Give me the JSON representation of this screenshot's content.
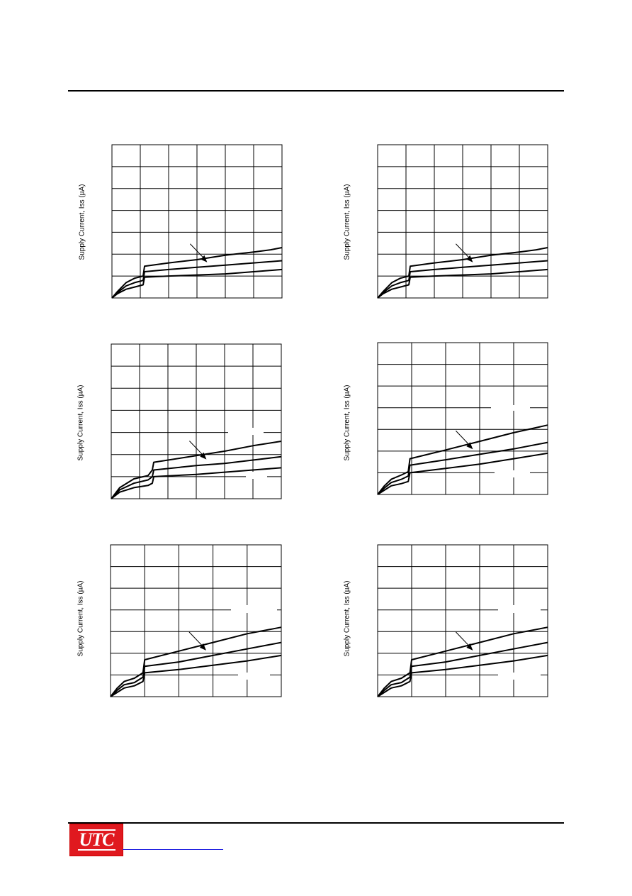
{
  "header": {},
  "ylabel": "Supply Current, Iss (µA)",
  "footer": {
    "logo_text": "UTC",
    "link_text": ""
  },
  "colors": {
    "logo_bg": "#e0191f",
    "link": "#1a1ae0",
    "ink": "#000000"
  },
  "chart_data": [
    {
      "type": "line",
      "title": "",
      "xlabel": "",
      "ylabel": "Supply Current, Iss (µA)",
      "xlim": [
        0,
        6
      ],
      "ylim": [
        0,
        7
      ],
      "grid": true,
      "series": [
        {
          "x": [
            0,
            0.2,
            0.5,
            0.8,
            1.1,
            1.15,
            2,
            3,
            4,
            5,
            5.6,
            6
          ],
          "y": [
            0,
            0.3,
            0.7,
            0.9,
            1.0,
            1.45,
            1.6,
            1.75,
            1.95,
            2.1,
            2.2,
            2.3
          ]
        },
        {
          "x": [
            0,
            0.2,
            0.5,
            0.8,
            1.1,
            1.15,
            2,
            3,
            4,
            5,
            6
          ],
          "y": [
            0,
            0.25,
            0.55,
            0.7,
            0.8,
            1.2,
            1.3,
            1.4,
            1.5,
            1.6,
            1.7
          ]
        },
        {
          "x": [
            0,
            0.2,
            0.5,
            0.8,
            1.1,
            1.15,
            2,
            3,
            4,
            5,
            6
          ],
          "y": [
            0,
            0.2,
            0.4,
            0.5,
            0.6,
            0.95,
            1.0,
            1.05,
            1.1,
            1.2,
            1.3
          ]
        }
      ]
    },
    {
      "type": "line",
      "title": "",
      "xlabel": "",
      "ylabel": "Supply Current, Iss (µA)",
      "xlim": [
        0,
        6
      ],
      "ylim": [
        0,
        7
      ],
      "grid": true,
      "series": [
        {
          "x": [
            0,
            0.2,
            0.5,
            0.8,
            1.1,
            1.15,
            2,
            3,
            4,
            5,
            5.6,
            6
          ],
          "y": [
            0,
            0.3,
            0.7,
            0.9,
            1.0,
            1.45,
            1.6,
            1.75,
            1.95,
            2.1,
            2.2,
            2.3
          ]
        },
        {
          "x": [
            0,
            0.2,
            0.5,
            0.8,
            1.1,
            1.15,
            2,
            3,
            4,
            5,
            6
          ],
          "y": [
            0,
            0.25,
            0.55,
            0.7,
            0.8,
            1.2,
            1.3,
            1.4,
            1.5,
            1.6,
            1.7
          ]
        },
        {
          "x": [
            0,
            0.2,
            0.5,
            0.8,
            1.1,
            1.15,
            2,
            3,
            4,
            5,
            6
          ],
          "y": [
            0,
            0.2,
            0.4,
            0.5,
            0.6,
            0.95,
            1.0,
            1.05,
            1.1,
            1.2,
            1.3
          ]
        }
      ]
    },
    {
      "type": "line",
      "title": "",
      "xlabel": "",
      "ylabel": "Supply Current, Iss (µA)",
      "xlim": [
        0,
        6
      ],
      "ylim": [
        0,
        7
      ],
      "grid": true,
      "series": [
        {
          "x": [
            0,
            0.3,
            0.8,
            1.3,
            1.45,
            1.5,
            3,
            4,
            5,
            6
          ],
          "y": [
            0,
            0.5,
            0.9,
            1.05,
            1.3,
            1.65,
            1.95,
            2.15,
            2.4,
            2.6
          ]
        },
        {
          "x": [
            0,
            0.3,
            0.8,
            1.3,
            1.45,
            1.5,
            3,
            4,
            5,
            6
          ],
          "y": [
            0,
            0.4,
            0.7,
            0.85,
            1.0,
            1.3,
            1.5,
            1.6,
            1.75,
            1.9
          ]
        },
        {
          "x": [
            0,
            0.3,
            0.8,
            1.3,
            1.45,
            1.5,
            3,
            4,
            5,
            6
          ],
          "y": [
            0,
            0.3,
            0.5,
            0.6,
            0.7,
            1.0,
            1.1,
            1.2,
            1.3,
            1.4
          ]
        }
      ]
    },
    {
      "type": "line",
      "title": "",
      "xlabel": "",
      "ylabel": "Supply Current, Iss (µA)",
      "xlim": [
        0,
        5
      ],
      "ylim": [
        0,
        7
      ],
      "grid": true,
      "series": [
        {
          "x": [
            0,
            0.2,
            0.4,
            0.7,
            0.9,
            0.95,
            2,
            3,
            4,
            5
          ],
          "y": [
            0,
            0.4,
            0.7,
            0.9,
            1.05,
            1.65,
            2.05,
            2.45,
            2.85,
            3.2
          ]
        },
        {
          "x": [
            0,
            0.2,
            0.4,
            0.7,
            0.9,
            0.95,
            2,
            3,
            4,
            5
          ],
          "y": [
            0,
            0.3,
            0.55,
            0.7,
            0.85,
            1.35,
            1.6,
            1.85,
            2.1,
            2.4
          ]
        },
        {
          "x": [
            0,
            0.2,
            0.4,
            0.7,
            0.9,
            0.95,
            2,
            3,
            4,
            5
          ],
          "y": [
            0,
            0.2,
            0.4,
            0.5,
            0.6,
            1.0,
            1.2,
            1.4,
            1.65,
            1.9
          ]
        }
      ]
    },
    {
      "type": "line",
      "title": "",
      "xlabel": "",
      "ylabel": "Supply Current, Iss (µA)",
      "xlim": [
        0,
        5
      ],
      "ylim": [
        0,
        7
      ],
      "grid": true,
      "series": [
        {
          "x": [
            0,
            0.2,
            0.4,
            0.7,
            0.95,
            1.0,
            2,
            3,
            4,
            5
          ],
          "y": [
            0,
            0.4,
            0.7,
            0.85,
            1.1,
            1.7,
            2.1,
            2.5,
            2.9,
            3.2
          ]
        },
        {
          "x": [
            0,
            0.2,
            0.4,
            0.7,
            0.95,
            1.0,
            2,
            3,
            4,
            5
          ],
          "y": [
            0,
            0.3,
            0.55,
            0.65,
            0.9,
            1.4,
            1.6,
            1.9,
            2.2,
            2.5
          ]
        },
        {
          "x": [
            0,
            0.2,
            0.4,
            0.7,
            0.95,
            1.0,
            2,
            3,
            4,
            5
          ],
          "y": [
            0,
            0.2,
            0.4,
            0.5,
            0.7,
            1.1,
            1.25,
            1.45,
            1.65,
            1.9
          ]
        }
      ]
    },
    {
      "type": "line",
      "title": "",
      "xlabel": "",
      "ylabel": "Supply Current, Iss (µA)",
      "xlim": [
        0,
        5
      ],
      "ylim": [
        0,
        7
      ],
      "grid": true,
      "series": [
        {
          "x": [
            0,
            0.2,
            0.4,
            0.7,
            0.95,
            1.0,
            2,
            3,
            4,
            5
          ],
          "y": [
            0,
            0.4,
            0.7,
            0.85,
            1.1,
            1.7,
            2.1,
            2.5,
            2.9,
            3.2
          ]
        },
        {
          "x": [
            0,
            0.2,
            0.4,
            0.7,
            0.95,
            1.0,
            2,
            3,
            4,
            5
          ],
          "y": [
            0,
            0.3,
            0.55,
            0.65,
            0.9,
            1.4,
            1.6,
            1.9,
            2.2,
            2.5
          ]
        },
        {
          "x": [
            0,
            0.2,
            0.4,
            0.7,
            0.95,
            1.0,
            2,
            3,
            4,
            5
          ],
          "y": [
            0,
            0.2,
            0.4,
            0.5,
            0.7,
            1.1,
            1.25,
            1.45,
            1.65,
            1.9
          ]
        }
      ]
    }
  ]
}
